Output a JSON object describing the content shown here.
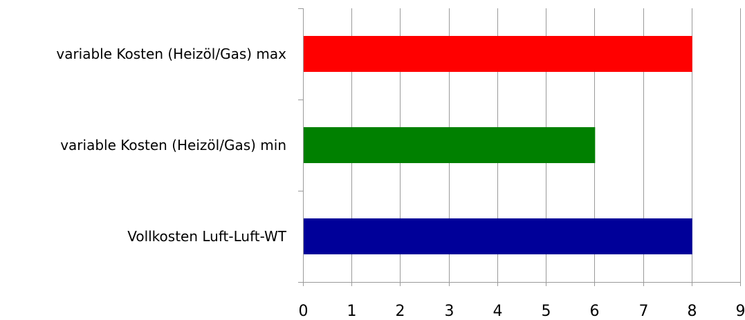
{
  "chart_data": {
    "type": "bar",
    "orientation": "horizontal",
    "categories": [
      "variable Kosten (Heizöl/Gas) max",
      "variable Kosten (Heizöl/Gas) min",
      "Vollkosten Luft-Luft-WT"
    ],
    "values": [
      8,
      6,
      8
    ],
    "colors": [
      "#ff0000",
      "#008000",
      "#000099"
    ],
    "xlim": [
      0,
      9
    ],
    "xticks": [
      "0",
      "1",
      "2",
      "3",
      "4",
      "5",
      "6",
      "7",
      "8",
      "9"
    ],
    "grid": "vertical",
    "legend": "none"
  }
}
